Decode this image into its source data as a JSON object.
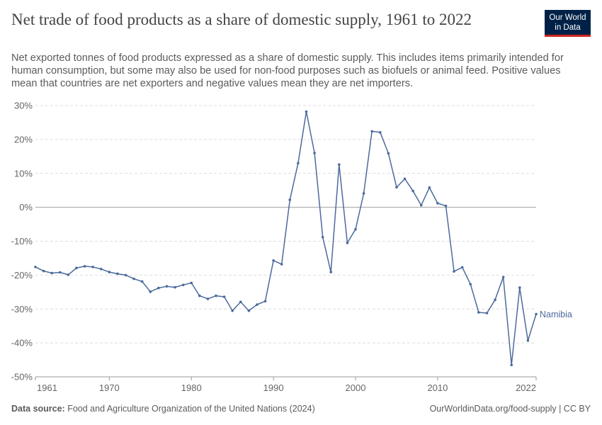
{
  "header": {
    "title": "Net trade of food products as a share of domestic supply, 1961 to 2022",
    "subtitle": "Net exported tonnes of food products expressed as a share of domestic supply. This includes items primarily intended for human consumption, but some may also be used for non-food purposes such as biofuels or animal feed. Positive values mean that countries are net exporters and negative values mean they are net importers."
  },
  "logo": {
    "line1": "Our World",
    "line2": "in Data"
  },
  "footer": {
    "source_label": "Data source:",
    "source_text": "Food and Agriculture Organization of the United Nations (2024)",
    "right_text": "OurWorldinData.org/food-supply | CC BY"
  },
  "colors": {
    "series": "#4c6a9c",
    "grid": "#dddddd",
    "zero": "#a0a0a0"
  },
  "chart_data": {
    "type": "line",
    "ylim": [
      -50,
      30
    ],
    "xlim": [
      1961,
      2022
    ],
    "y_ticks": [
      30,
      20,
      10,
      0,
      -10,
      -20,
      -30,
      -40,
      -50
    ],
    "y_tick_labels": [
      "30%",
      "20%",
      "10%",
      "0%",
      "-10%",
      "-20%",
      "-30%",
      "-40%",
      "-50%"
    ],
    "x_ticks": [
      1961,
      1970,
      1980,
      1990,
      2000,
      2010,
      2022
    ],
    "x_tick_labels": [
      "1961",
      "1970",
      "1980",
      "1990",
      "2000",
      "2010",
      "2022"
    ],
    "grid": "horizontal-dashed",
    "series": [
      {
        "name": "Namibia",
        "x": [
          1961,
          1962,
          1963,
          1964,
          1965,
          1966,
          1967,
          1968,
          1969,
          1970,
          1971,
          1972,
          1973,
          1974,
          1975,
          1976,
          1977,
          1978,
          1979,
          1980,
          1981,
          1982,
          1983,
          1984,
          1985,
          1986,
          1987,
          1988,
          1989,
          1990,
          1991,
          1992,
          1993,
          1994,
          1995,
          1996,
          1997,
          1998,
          1999,
          2000,
          2001,
          2002,
          2003,
          2004,
          2005,
          2006,
          2007,
          2008,
          2009,
          2010,
          2011,
          2012,
          2013,
          2014,
          2015,
          2016,
          2017,
          2018,
          2019,
          2020,
          2021,
          2022
        ],
        "y": [
          -17.6,
          -18.8,
          -19.4,
          -19.2,
          -19.9,
          -17.9,
          -17.4,
          -17.6,
          -18.2,
          -19.1,
          -19.6,
          -20.0,
          -21.1,
          -21.9,
          -24.9,
          -23.8,
          -23.3,
          -23.6,
          -22.9,
          -22.3,
          -26.1,
          -27.0,
          -26.1,
          -26.4,
          -30.5,
          -27.9,
          -30.5,
          -28.7,
          -27.7,
          -15.7,
          -16.8,
          2.2,
          13.0,
          28.2,
          16.0,
          -8.8,
          -19.1,
          12.6,
          -10.5,
          -6.5,
          4.1,
          22.4,
          22.1,
          15.9,
          5.9,
          8.4,
          4.8,
          0.6,
          5.8,
          1.2,
          0.4,
          -18.9,
          -17.7,
          -22.7,
          -31.0,
          -31.2,
          -27.3,
          -20.6,
          -46.5,
          -23.7,
          -39.3,
          -31.5
        ]
      }
    ]
  }
}
